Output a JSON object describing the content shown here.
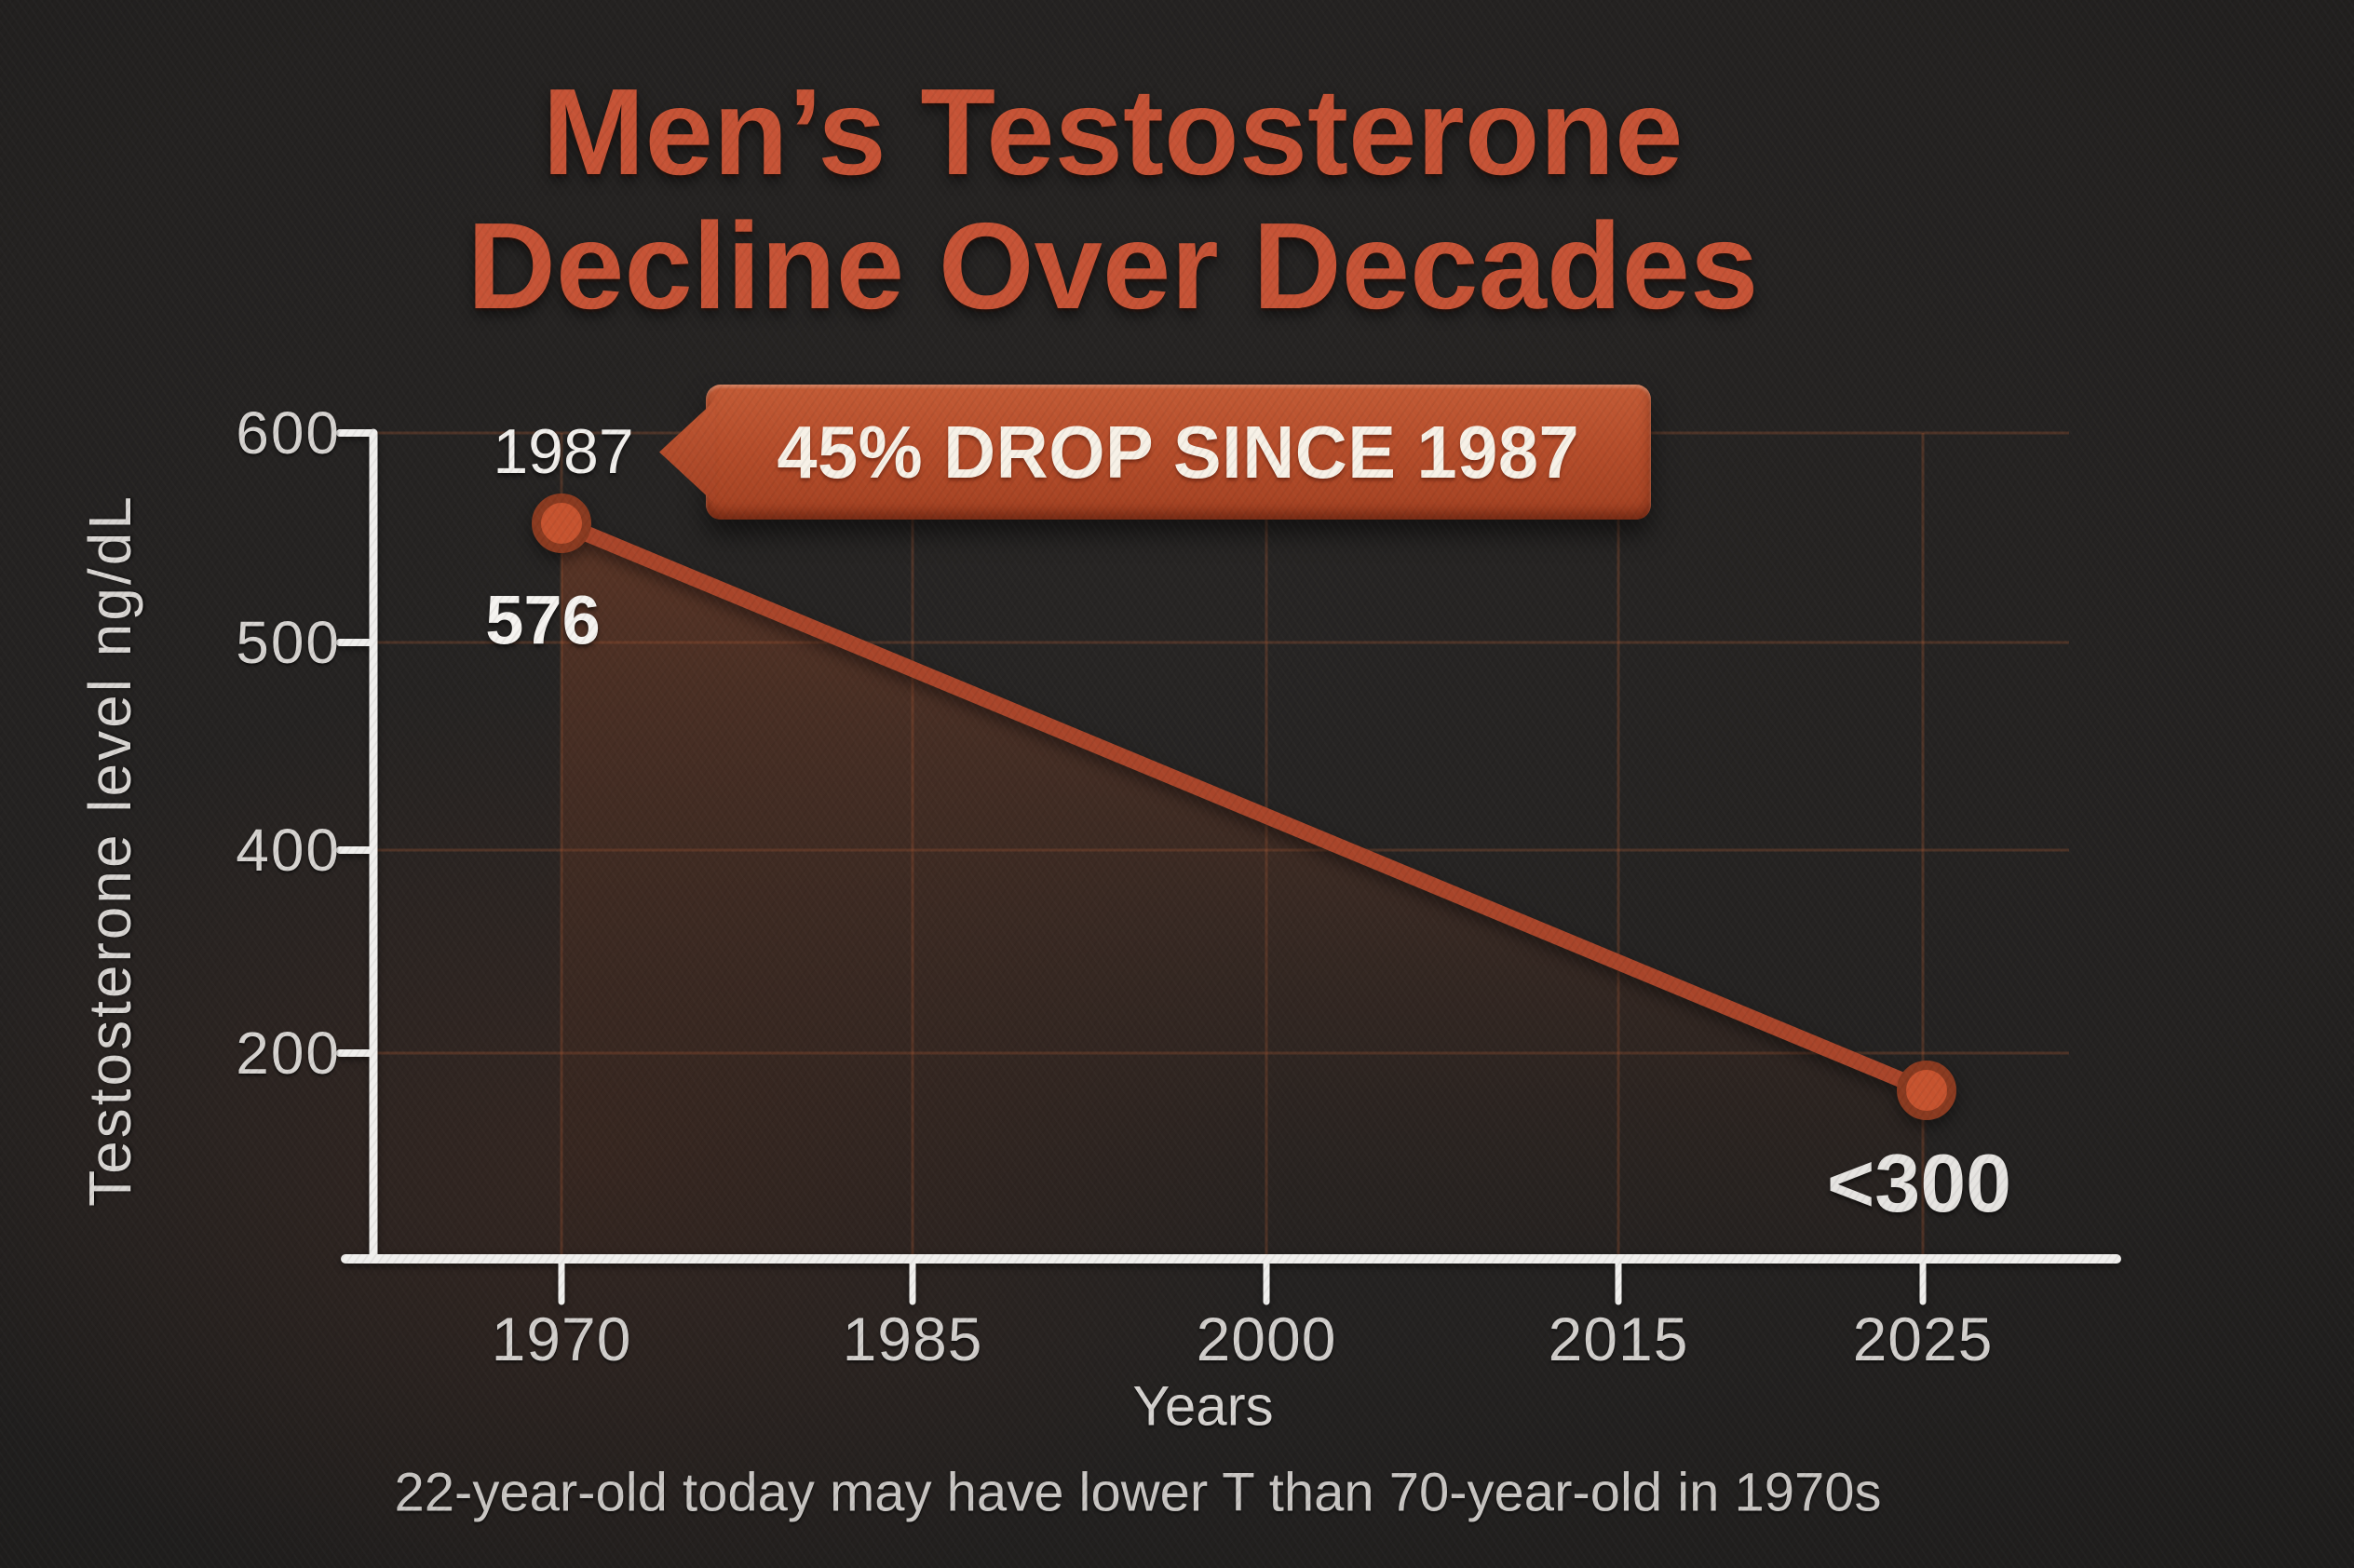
{
  "header": {
    "title_lines": [
      "Men’s Testosterone",
      "Decline Over Decades"
    ]
  },
  "callout": {
    "text": "45% DROP SINCE 1987"
  },
  "point_labels": {
    "start_year": "1987",
    "start_value": "576",
    "end_value": "<300"
  },
  "y_axis": {
    "label": "Testosterone level ng/dL",
    "ticks": [
      "600",
      "500",
      "400",
      "200"
    ]
  },
  "x_axis": {
    "label": "Years",
    "ticks": [
      "1970",
      "1985",
      "2000",
      "2015",
      "2025"
    ]
  },
  "footer": {
    "caption": "22-year-old today may have lower T than 70-year-old in 1970s"
  },
  "colors": {
    "accent": "#c65336",
    "badge_bg": "#b54d2b",
    "line": "#a9452a",
    "point_fill": "#c6532f",
    "point_stroke": "#8a3a20",
    "axis": "#f0efed",
    "grid": "rgba(196,98,56,0.25)",
    "area_top": "rgba(170,78,42,0.40)",
    "area_mid": "rgba(122,60,34,0.20)",
    "area_bottom": "rgba(70,35,20,0.05)",
    "background": "#242221",
    "tick_text": "#d6d3d0",
    "white_text": "#f2f0ed"
  },
  "chart_data": {
    "type": "line",
    "title": "Men’s Testosterone Decline Over Decades",
    "xlabel": "Years",
    "ylabel": "Testosterone level ng/dL",
    "x_tick_labels": [
      "1970",
      "1985",
      "2000",
      "2015",
      "2025"
    ],
    "y_tick_labels": [
      "600",
      "500",
      "400",
      "200"
    ],
    "series": [
      {
        "name": "Testosterone level ng/dL",
        "points": [
          {
            "x_plotted": "1970",
            "x_labeled": "1987",
            "y": 576,
            "label": "576"
          },
          {
            "x_plotted": "2025",
            "x_labeled": "2025",
            "y": "<300",
            "label": "<300"
          }
        ]
      }
    ],
    "annotation": "45% DROP SINCE 1987",
    "caption": "22-year-old today may have lower T than 70-year-old in 1970s",
    "grid": true,
    "legend": false,
    "area_fill": true,
    "ylim_labeled": [
      200,
      600
    ],
    "axis_note": "y tick labels 600/500/400/200 are evenly spaced as drawn"
  }
}
